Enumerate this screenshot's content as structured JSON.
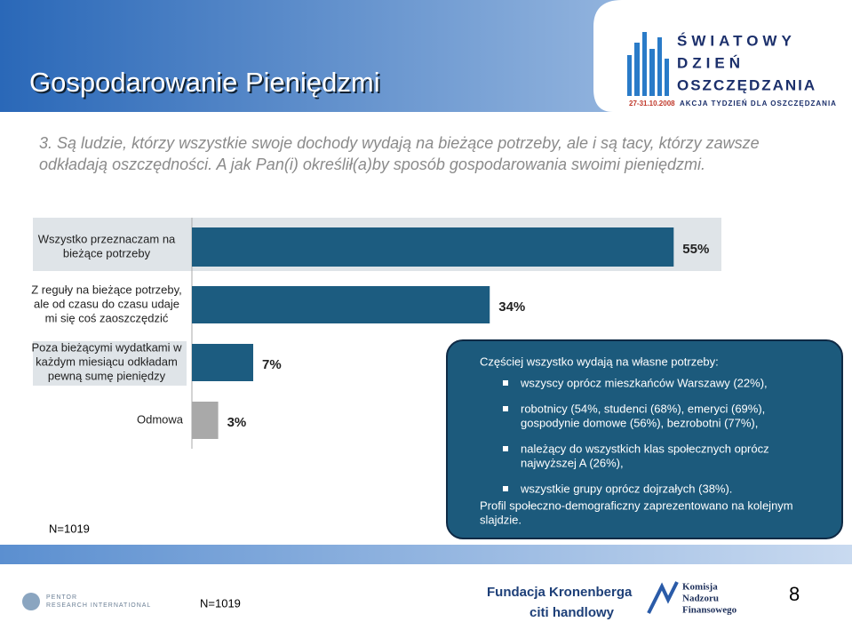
{
  "header": {
    "title": "Gospodarowanie Pieniędzmi",
    "logo_lines": [
      "ŚWIATOWY",
      "DZIEŃ",
      "OSZCZĘDZANIA"
    ],
    "logo_date": "27-31.10.2008",
    "logo_tagline": "AKCJA TYDZIEŃ DLA OSZCZĘDZANIA"
  },
  "question": [
    "3. Są ludzie, którzy wszystkie swoje dochody wydają na bieżące potrzeby, ale i są tacy, którzy zawsze",
    "odkładają oszczędności. A jak Pan(i) określił(a)by sposób gospodarowania swoimi pieniędzmi."
  ],
  "chart_data": {
    "type": "bar",
    "orientation": "horizontal",
    "categories": [
      [
        "Wszystko przeznaczam na",
        "bieżące potrzeby"
      ],
      [
        "Z reguły na bieżące potrzeby,",
        "ale od czasu do czasu udaje",
        "mi się coś zaoszczędzić"
      ],
      [
        "Poza bieżącymi wydatkami w",
        "każdym miesiącu odkładam",
        "pewną sumę pieniędzy"
      ],
      [
        "Odmowa"
      ]
    ],
    "values": [
      55,
      34,
      7,
      3
    ],
    "value_labels": [
      "55%",
      "34%",
      "7%",
      "3%"
    ],
    "colors": [
      "#1c5c80",
      "#1c5c80",
      "#1c5c80",
      "#a9a9a9"
    ]
  },
  "sample_note": "N=1019",
  "callout": {
    "heading": "Częściej wszystko wydają na własne potrzeby:",
    "bullets": [
      [
        "wszyscy oprócz mieszkańców Warszawy (22%),"
      ],
      [
        "robotnicy (54%, studenci (68%), emeryci (69%),",
        "gospodynie domowe (56%), bezrobotni (77%),"
      ],
      [
        "należący do wszystkich klas społecznych oprócz",
        "najwyższej A (26%),"
      ],
      [
        "wszystkie grupy oprócz dojrzałych (38%)."
      ]
    ],
    "footer": [
      "Profil społeczno-demograficzny zaprezentowano na kolejnym",
      "slajdzie."
    ]
  },
  "footer": {
    "pentor": [
      "PENTOR",
      "RESEARCH INTERNATIONAL"
    ],
    "sample_note": "N=1019",
    "sponsor1": "Fundacja Kronenberga",
    "sponsor2": "citi handlowy",
    "knf": [
      "Komisja",
      "Nadzoru",
      "Finansowego"
    ],
    "page": "8"
  }
}
